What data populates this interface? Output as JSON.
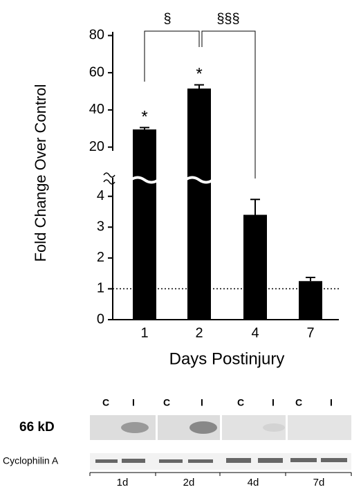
{
  "chart_data": {
    "type": "bar",
    "ylabel": "Fold Change Over Control",
    "xlabel": "Days Postinjury",
    "categories": [
      "1",
      "2",
      "4",
      "7"
    ],
    "values": [
      29.5,
      51.5,
      3.4,
      1.25
    ],
    "errors": [
      1,
      2,
      0.5,
      0.12
    ],
    "color": "#000000",
    "y_segments": [
      {
        "ylim": [
          0,
          4.6
        ],
        "yticks": [
          0,
          1,
          2,
          3,
          4
        ]
      },
      {
        "ylim": [
          18,
          82
        ],
        "yticks": [
          20,
          40,
          60,
          80
        ]
      }
    ],
    "reference_line": 1,
    "annotations": [
      "*",
      "*",
      "§",
      "§§§"
    ]
  },
  "blot": {
    "lanes": [
      "C",
      "I",
      "C",
      "I",
      "C",
      "I",
      "C",
      "I"
    ],
    "rows": [
      "66 kD",
      "Cyclophilin A"
    ],
    "timepoints": [
      "1d",
      "2d",
      "4d",
      "7d"
    ]
  }
}
